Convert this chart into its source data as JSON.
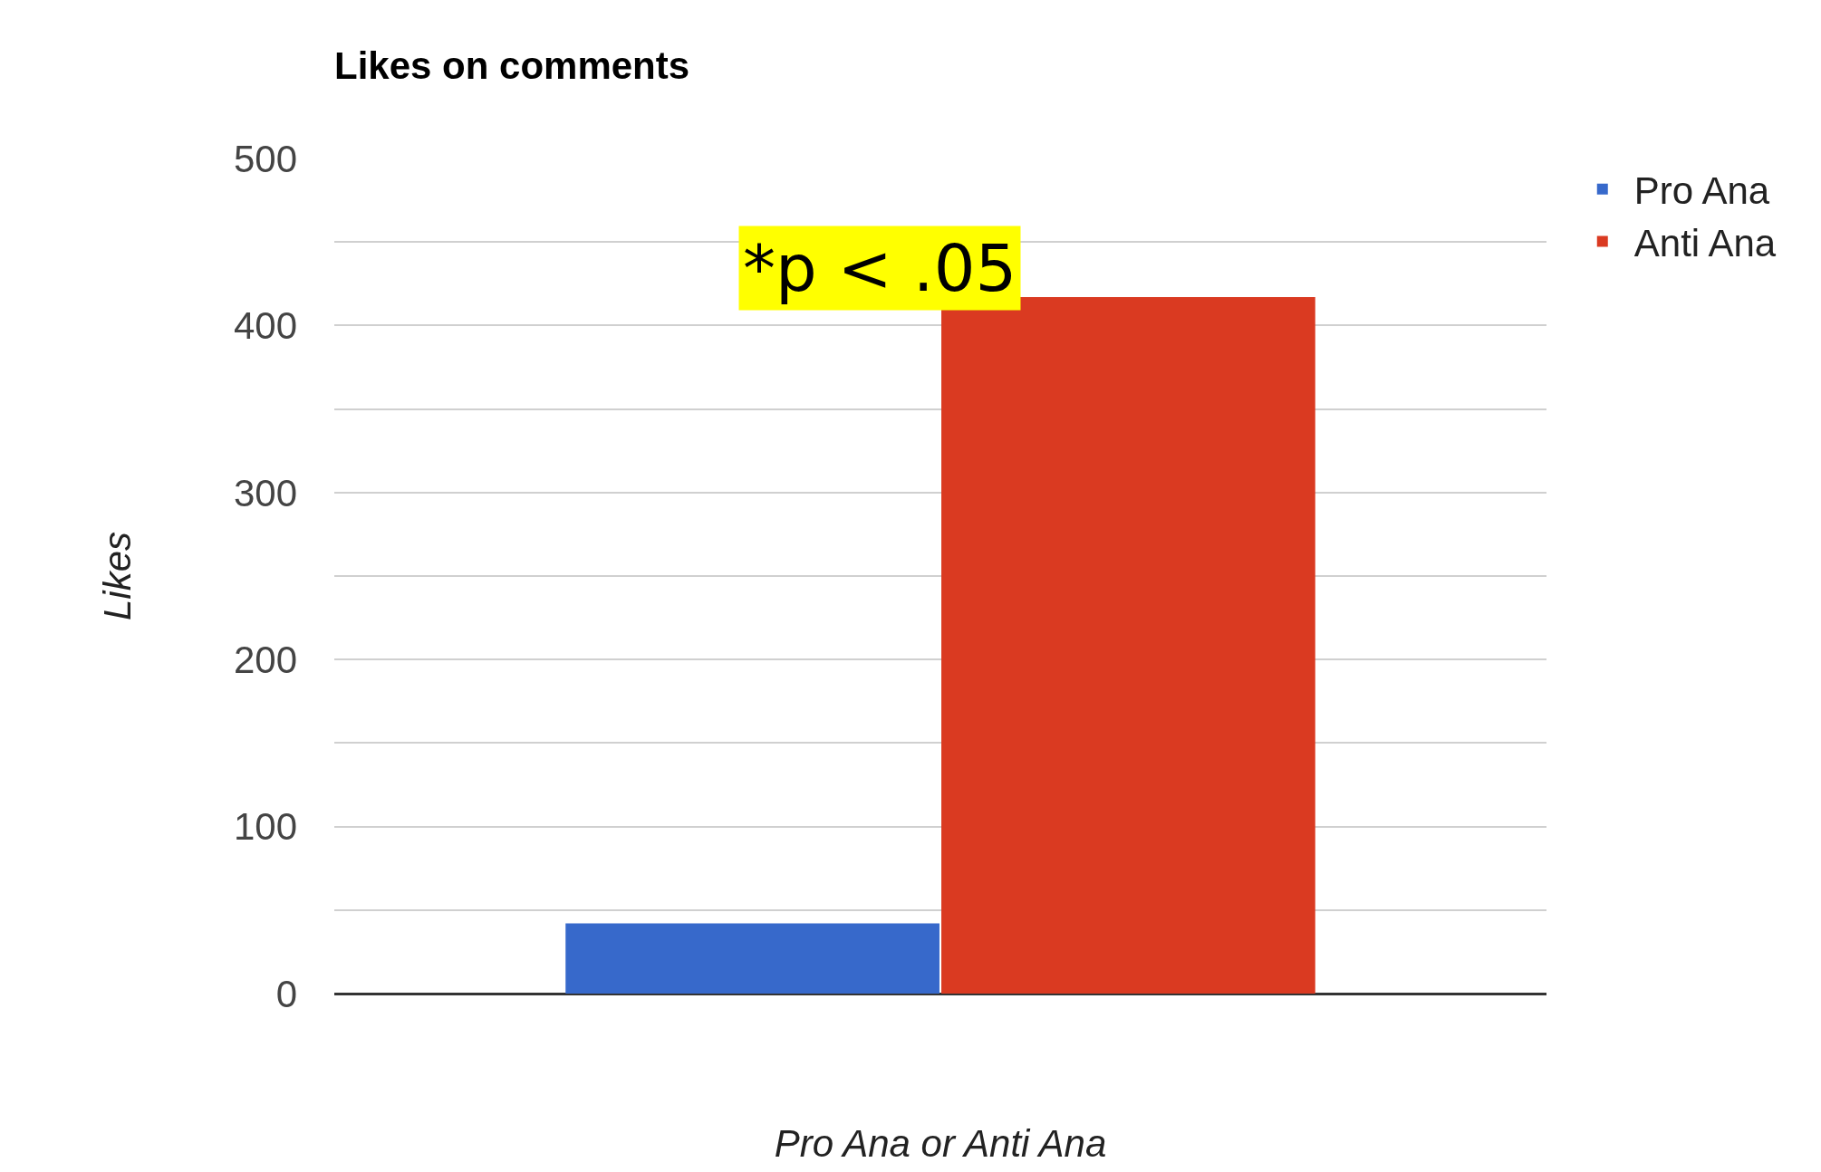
{
  "chart_data": {
    "type": "bar",
    "title": "Likes on comments",
    "xlabel": "Pro Ana or Anti Ana",
    "ylabel": "Likes",
    "categories": [
      null
    ],
    "series": [
      {
        "name": "Pro Ana",
        "color": "#3769cb",
        "values": [
          42
        ]
      },
      {
        "name": "Anti Ana",
        "color": "#da3a21",
        "values": [
          417
        ]
      }
    ],
    "ylim": [
      0,
      500
    ],
    "yticks": [
      0,
      {
        "value": 50,
        "label": null
      },
      100,
      {
        "value": 150,
        "label": null
      },
      200,
      {
        "value": 250,
        "label": null
      },
      300,
      {
        "value": 350,
        "label": null
      },
      400,
      {
        "value": 450,
        "label": null
      },
      500
    ],
    "grid": "y",
    "legend": "top right",
    "annotations": [
      "*p < .05"
    ]
  }
}
